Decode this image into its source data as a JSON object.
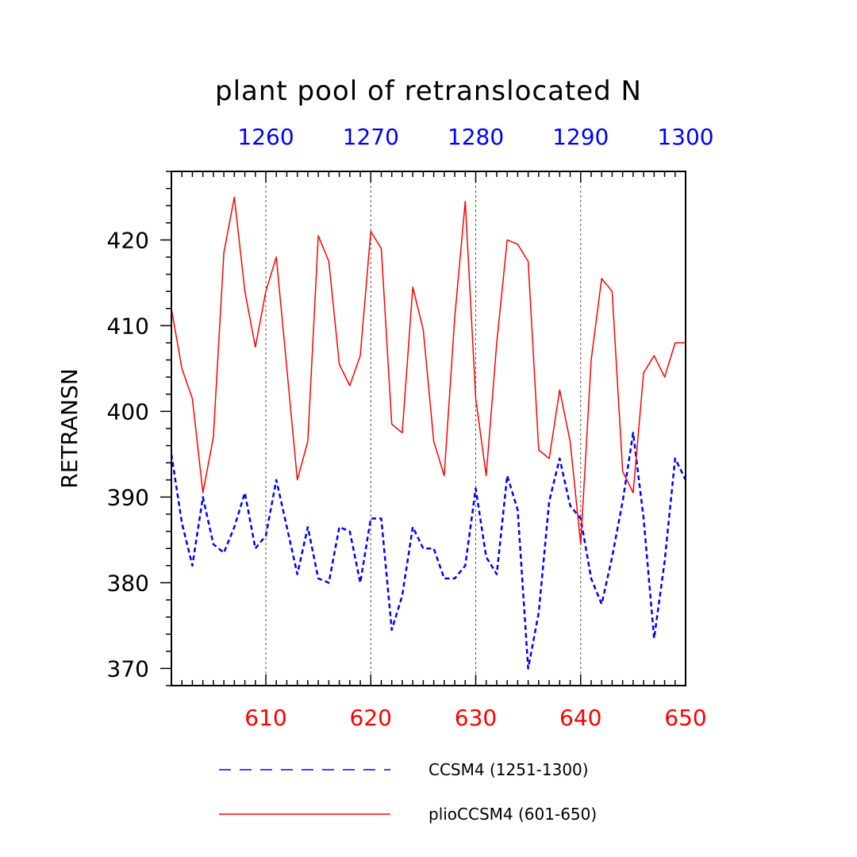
{
  "chart_data": {
    "type": "line",
    "title": "plant pool of retranslocated N",
    "ylabel": "RETRANSN",
    "xlabel": "",
    "xlim": [
      601,
      650
    ],
    "xlim_top": [
      1251,
      1300
    ],
    "ylim": [
      368,
      428
    ],
    "x_ticks": [
      610,
      620,
      630,
      640,
      650
    ],
    "x_ticks_top": [
      1260,
      1270,
      1280,
      1290,
      1300
    ],
    "y_ticks": [
      370,
      380,
      390,
      400,
      410,
      420
    ],
    "grid": "vertical dashed at major x ticks",
    "legend_position": "bottom",
    "series": [
      {
        "name": "CCSM4 (1251-1300)",
        "color": "#0000ff",
        "style": "dashed",
        "axis": "top",
        "x": [
          1251,
          1252,
          1253,
          1254,
          1255,
          1256,
          1257,
          1258,
          1259,
          1260,
          1261,
          1262,
          1263,
          1264,
          1265,
          1266,
          1267,
          1268,
          1269,
          1270,
          1271,
          1272,
          1273,
          1274,
          1275,
          1276,
          1277,
          1278,
          1279,
          1280,
          1281,
          1282,
          1283,
          1284,
          1285,
          1286,
          1287,
          1288,
          1289,
          1290,
          1291,
          1292,
          1293,
          1294,
          1295,
          1296,
          1297,
          1298,
          1299,
          1300
        ],
        "values": [
          395,
          387,
          382,
          390,
          384.5,
          383.5,
          386.5,
          390.5,
          384,
          385.5,
          392,
          386.5,
          381,
          386.5,
          380.5,
          380,
          386.5,
          386,
          380,
          387.5,
          387.5,
          374.5,
          378.5,
          386.5,
          384,
          384,
          380.5,
          380.5,
          382,
          391,
          383,
          381,
          392.5,
          388.5,
          370,
          376.5,
          389.5,
          394.5,
          389,
          387.5,
          380.5,
          377.5,
          383,
          389.5,
          397.5,
          387.5,
          373.5,
          382.5,
          394.5,
          392
        ]
      },
      {
        "name": "plioCCSM4 (601-650)",
        "color": "#ff0000",
        "style": "solid",
        "axis": "bottom",
        "x": [
          601,
          602,
          603,
          604,
          605,
          606,
          607,
          608,
          609,
          610,
          611,
          612,
          613,
          614,
          615,
          616,
          617,
          618,
          619,
          620,
          621,
          622,
          623,
          624,
          625,
          626,
          627,
          628,
          629,
          630,
          631,
          632,
          633,
          634,
          635,
          636,
          637,
          638,
          639,
          640,
          641,
          642,
          643,
          644,
          645,
          646,
          647,
          648,
          649,
          650
        ],
        "values": [
          412,
          405,
          401.5,
          390.5,
          397,
          418.5,
          425,
          414,
          407.5,
          414,
          418,
          405,
          392,
          396.5,
          420.5,
          417.5,
          405.5,
          403,
          406.5,
          421,
          419,
          398.5,
          397.5,
          414.5,
          409.5,
          396.5,
          392.5,
          411,
          424.5,
          401.5,
          392.5,
          408,
          420,
          419.5,
          417.5,
          395.5,
          394.5,
          402.5,
          396.5,
          384.5,
          406,
          415.5,
          414,
          393,
          390.5,
          404.5,
          406.5,
          404,
          408,
          408
        ]
      }
    ]
  }
}
